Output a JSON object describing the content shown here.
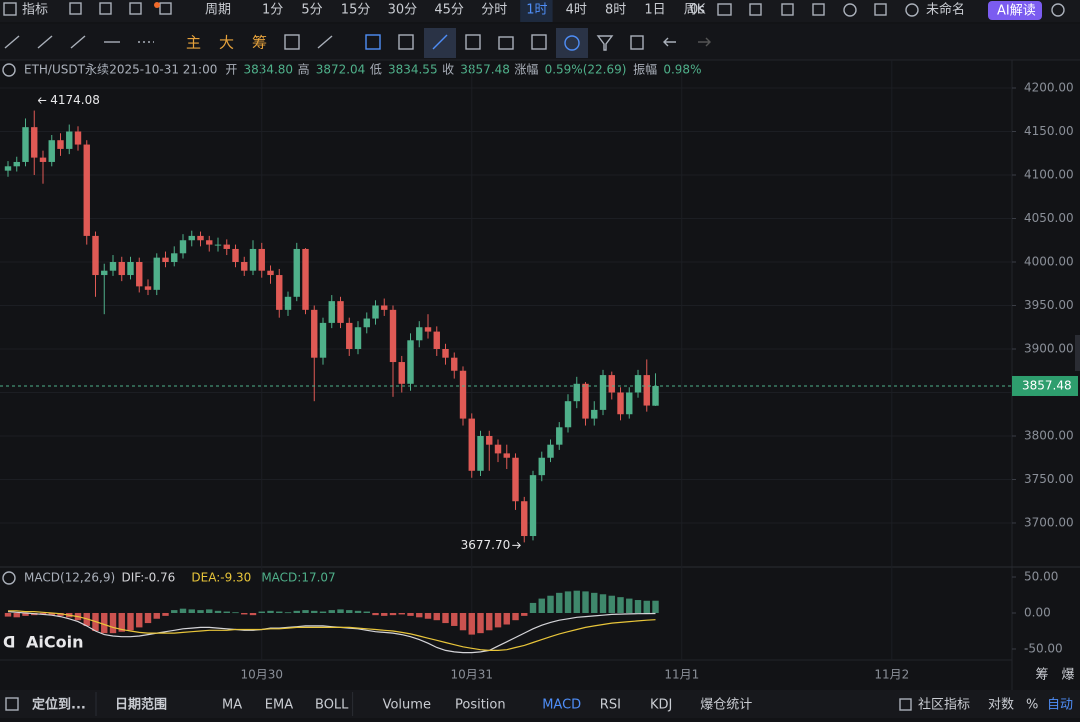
{
  "toolbar": {
    "indicators": "指标",
    "period": "周期",
    "intervals": [
      {
        "label": "1分"
      },
      {
        "label": "5分"
      },
      {
        "label": "15分"
      },
      {
        "label": "30分"
      },
      {
        "label": "45分"
      },
      {
        "label": "分时"
      },
      {
        "label": "1时",
        "active": true
      },
      {
        "label": "4时"
      },
      {
        "label": "8时"
      },
      {
        "label": "1日"
      },
      {
        "label": "周K"
      }
    ],
    "countdown": "0s",
    "layout": "未命名",
    "ai": "AI解读",
    "tools": [
      "主",
      "大",
      "筹"
    ]
  },
  "info": {
    "symbol": "ETH/USDT永续",
    "time": "2025-10-31 21:00",
    "fields": [
      {
        "label": "开",
        "value": "3834.80"
      },
      {
        "label": "高",
        "value": "3872.04"
      },
      {
        "label": "低",
        "value": "3834.55"
      },
      {
        "label": "收",
        "value": "3857.48"
      },
      {
        "label": "涨幅",
        "value": "0.59%(22.69)"
      },
      {
        "label": "振幅",
        "value": "0.98%"
      }
    ]
  },
  "logo": "AiCoin",
  "chart_data": [
    {
      "type": "candlestick",
      "up_color": "#4fb08a",
      "down_color": "#e05a55",
      "open": [
        4105,
        4110,
        4115,
        4155,
        4120,
        4115,
        4140,
        4130,
        4150,
        4135,
        4030,
        3985,
        3990,
        4000,
        3985,
        4000,
        3972,
        3968,
        4005,
        4000,
        4010,
        4025,
        4030,
        4025,
        4020,
        4020,
        4015,
        4000,
        3990,
        4015,
        3990,
        3985,
        3945,
        3960,
        4015,
        3945,
        3890,
        3930,
        3955,
        3930,
        3900,
        3925,
        3935,
        3950,
        3945,
        3885,
        3860,
        3910,
        3925,
        3920,
        3900,
        3890,
        3875,
        3820,
        3760,
        3800,
        3790,
        3780,
        3775,
        3725,
        3685,
        3755,
        3775,
        3790,
        3810,
        3840,
        3860,
        3820,
        3830,
        3870,
        3850,
        3825,
        3850,
        3870,
        3834.8
      ],
      "high": [
        4116,
        4121,
        4165,
        4174.08,
        4128,
        4146,
        4148,
        4158,
        4156,
        4140,
        4035,
        3998,
        4008,
        4006,
        4006,
        4005,
        3980,
        4010,
        4012,
        4018,
        4032,
        4036,
        4035,
        4030,
        4028,
        4026,
        4020,
        4006,
        4025,
        4022,
        3996,
        3992,
        3966,
        4022,
        4016,
        3950,
        3936,
        3962,
        3960,
        3936,
        3932,
        3942,
        3956,
        3958,
        3950,
        3892,
        3918,
        3932,
        3940,
        3926,
        3906,
        3896,
        3880,
        3826,
        3806,
        3806,
        3796,
        3790,
        3780,
        3730,
        3760,
        3782,
        3796,
        3816,
        3848,
        3868,
        3862,
        3840,
        3876,
        3874,
        3856,
        3856,
        3876,
        3888,
        3872.04
      ],
      "low": [
        4098,
        4104,
        4110,
        4100,
        4090,
        4110,
        4122,
        4124,
        4128,
        4020,
        3960,
        3940,
        3984,
        3978,
        3980,
        3965,
        3962,
        3962,
        3994,
        3995,
        4004,
        4018,
        4018,
        4012,
        4012,
        4008,
        3994,
        3984,
        3985,
        3982,
        3975,
        3936,
        3938,
        3955,
        3940,
        3840,
        3882,
        3924,
        3924,
        3892,
        3894,
        3918,
        3928,
        3938,
        3845,
        3850,
        3852,
        3902,
        3912,
        3892,
        3882,
        3866,
        3812,
        3752,
        3754,
        3760,
        3770,
        3762,
        3715,
        3677.7,
        3680,
        3748,
        3770,
        3784,
        3804,
        3832,
        3812,
        3812,
        3824,
        3842,
        3818,
        3820,
        3844,
        3828,
        3834.55
      ],
      "close": [
        4110,
        4115,
        4155,
        4120,
        4115,
        4140,
        4130,
        4150,
        4135,
        4030,
        3985,
        3990,
        4000,
        3985,
        4000,
        3972,
        3968,
        4005,
        4000,
        4010,
        4025,
        4030,
        4025,
        4020,
        4020,
        4015,
        4000,
        3990,
        4015,
        3990,
        3985,
        3945,
        3960,
        4015,
        3945,
        3890,
        3930,
        3955,
        3930,
        3900,
        3925,
        3935,
        3950,
        3945,
        3885,
        3860,
        3910,
        3925,
        3920,
        3900,
        3890,
        3875,
        3820,
        3760,
        3800,
        3790,
        3780,
        3775,
        3725,
        3685,
        3755,
        3775,
        3790,
        3810,
        3840,
        3860,
        3820,
        3830,
        3870,
        3850,
        3825,
        3850,
        3870,
        3835,
        3857.48
      ],
      "xlim": [
        -0.914,
        114.74
      ],
      "xticks": [
        {
          "value": 29,
          "label": "10月30"
        },
        {
          "value": 53,
          "label": "10月31"
        },
        {
          "value": 77,
          "label": "11月1"
        },
        {
          "value": 101,
          "label": "11月2"
        }
      ],
      "ylim": [
        3651.7,
        4232.2
      ],
      "yticks": [
        {
          "value": 4200,
          "label": "4200.00"
        },
        {
          "value": 4150,
          "label": "4150.00"
        },
        {
          "value": 4100,
          "label": "4100.00"
        },
        {
          "value": 4050,
          "label": "4050.00"
        },
        {
          "value": 4000,
          "label": "4000.00"
        },
        {
          "value": 3950,
          "label": "3950.00"
        },
        {
          "value": 3900,
          "label": "3900.00"
        },
        {
          "value": 3850,
          "label": "3850.00"
        },
        {
          "value": 3800,
          "label": "3800.00"
        },
        {
          "value": 3750,
          "label": "3750.00"
        },
        {
          "value": 3700,
          "label": "3700.00"
        }
      ],
      "grid": true,
      "annotations": [
        {
          "index": 3,
          "value": 4174.08,
          "label": "4174.08"
        },
        {
          "index": 59,
          "value": 3677.7,
          "label": "3677.70"
        }
      ],
      "last_price": {
        "value": 3857.48,
        "label": "3857.48"
      }
    },
    {
      "type": "macd",
      "title": "MACD(12,26,9)",
      "legend": [
        "DIF:-0.76",
        "DEA:-9.30",
        "MACD:17.07"
      ],
      "series": [
        {
          "name": "MACD",
          "kind": "bar",
          "up_color": "#4fb08a",
          "down_color": "#e05a55",
          "values": [
            -5,
            -6,
            -4,
            -3,
            -2,
            -3,
            -4,
            -6,
            -10,
            -18,
            -25,
            -28,
            -28,
            -26,
            -24,
            -20,
            -14,
            -8,
            -4,
            4,
            6,
            5,
            4,
            5,
            3,
            2,
            1,
            -2,
            -3,
            2,
            3,
            2,
            1,
            3,
            4,
            3,
            2,
            4,
            5,
            4,
            3,
            2,
            -3,
            -4,
            -3,
            -2,
            -4,
            -6,
            -8,
            -10,
            -14,
            -18,
            -24,
            -30,
            -28,
            -24,
            -20,
            -16,
            -10,
            -4,
            14,
            20,
            24,
            28,
            30,
            31,
            30,
            28,
            26,
            24,
            22,
            20,
            18,
            17,
            17.07
          ]
        },
        {
          "name": "DIF",
          "kind": "line",
          "color": "#d4d4d8",
          "values": [
            2,
            1,
            0,
            -1,
            -2,
            -3,
            -5,
            -8,
            -12,
            -18,
            -25,
            -30,
            -32,
            -33,
            -33,
            -32,
            -30,
            -28,
            -26,
            -24,
            -22,
            -21,
            -20,
            -20,
            -21,
            -22,
            -23,
            -24,
            -24,
            -23,
            -21,
            -21,
            -20,
            -19,
            -18,
            -18,
            -18,
            -19,
            -20,
            -21,
            -22,
            -24,
            -26,
            -27,
            -28,
            -30,
            -33,
            -37,
            -42,
            -48,
            -52,
            -54,
            -55,
            -55,
            -54,
            -52,
            -46,
            -40,
            -34,
            -28,
            -22,
            -17,
            -13,
            -10,
            -8,
            -6,
            -5,
            -4,
            -3,
            -2,
            -1.5,
            -1.2,
            -1,
            -0.9,
            -0.76
          ]
        },
        {
          "name": "DEA",
          "kind": "line",
          "color": "#e8c53a",
          "values": [
            3,
            3,
            2,
            2,
            1,
            0,
            -1,
            -3,
            -5,
            -8,
            -12,
            -16,
            -20,
            -23,
            -25,
            -27,
            -28,
            -28,
            -28,
            -28,
            -27,
            -26,
            -25,
            -24,
            -24,
            -24,
            -23,
            -23,
            -23,
            -23,
            -22,
            -22,
            -21,
            -20,
            -20,
            -20,
            -20,
            -20,
            -20,
            -20,
            -21,
            -22,
            -23,
            -24,
            -25,
            -27,
            -29,
            -32,
            -35,
            -38,
            -41,
            -44,
            -47,
            -49,
            -51,
            -52,
            -52,
            -51,
            -48,
            -45,
            -41,
            -37,
            -33,
            -29,
            -26,
            -23,
            -20,
            -18,
            -16,
            -14,
            -13,
            -12,
            -11,
            -10,
            -9.3
          ]
        }
      ],
      "xlim": [
        -0.914,
        114.74
      ],
      "ylim": [
        -65.3,
        62.5
      ],
      "yticks": [
        {
          "value": 50,
          "label": "50.00"
        },
        {
          "value": 0,
          "label": "0.00"
        },
        {
          "value": -50,
          "label": "-50.00"
        }
      ]
    }
  ],
  "side": [
    "筹",
    "爆"
  ],
  "bottombar": {
    "locate": "定位到...",
    "range": "日期范围",
    "indicators": [
      {
        "label": "MA"
      },
      {
        "label": "EMA"
      },
      {
        "label": "BOLL"
      },
      {
        "label": "Volume"
      },
      {
        "label": "Position"
      },
      {
        "label": "MACD",
        "active": true
      },
      {
        "label": "RSI"
      },
      {
        "label": "KDJ"
      },
      {
        "label": "爆仓统计"
      }
    ],
    "community": "社区指标",
    "log": "对数",
    "percent": "%",
    "auto": "自动"
  }
}
